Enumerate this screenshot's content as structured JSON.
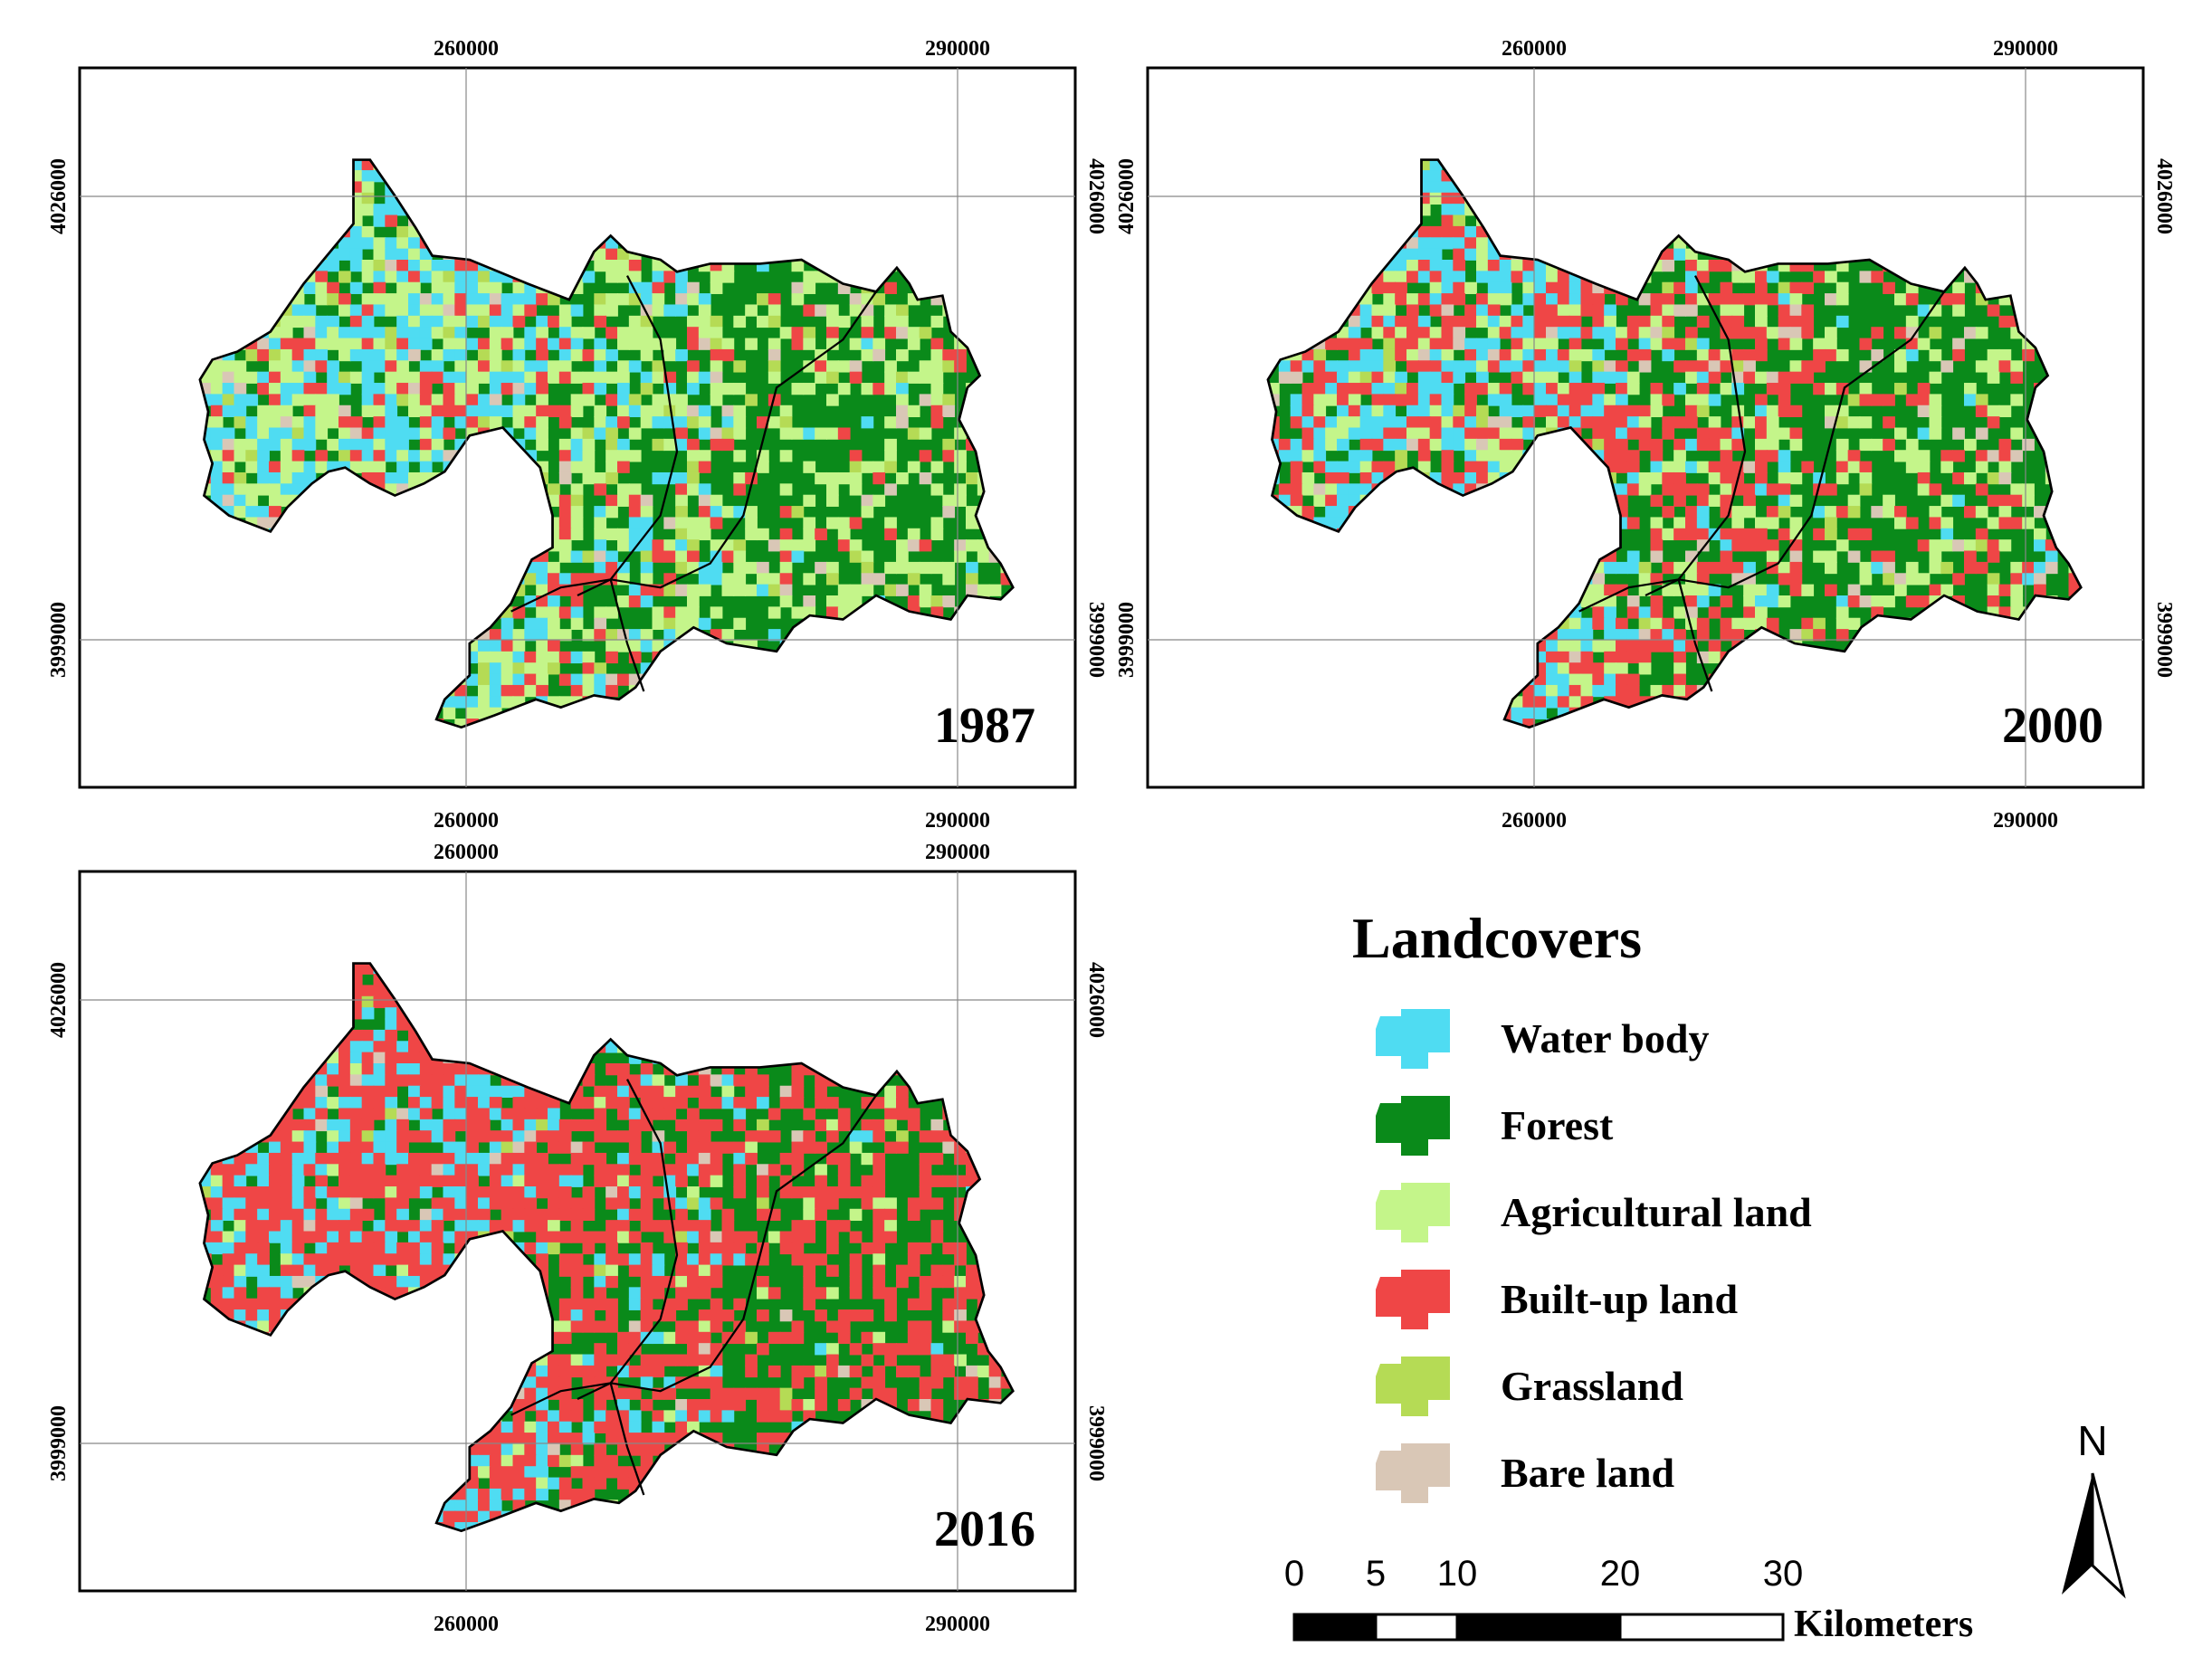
{
  "colors": {
    "water": "#4fdcf2",
    "forest": "#0a8a1a",
    "agri": "#c4f58a",
    "built": "#ef4646",
    "grass": "#b5db55",
    "bare": "#d9c7b6"
  },
  "grid": {
    "x_labels": [
      "260000",
      "290000"
    ],
    "y_labels": [
      "4026000",
      "3999000"
    ]
  },
  "panels": [
    {
      "year": "1987",
      "mix": {
        "water": 0.14,
        "forest": 0.36,
        "agri": 0.27,
        "built": 0.14,
        "grass": 0.05,
        "bare": 0.04
      }
    },
    {
      "year": "2000",
      "mix": {
        "water": 0.13,
        "forest": 0.34,
        "agri": 0.14,
        "built": 0.32,
        "grass": 0.03,
        "bare": 0.04
      }
    },
    {
      "year": "2016",
      "mix": {
        "water": 0.11,
        "forest": 0.28,
        "agri": 0.04,
        "built": 0.54,
        "grass": 0.01,
        "bare": 0.02
      }
    }
  ],
  "legend": {
    "title": "Landcovers",
    "items": [
      {
        "label": "Water body",
        "color_key": "water",
        "icon": "water-body-swatch-icon"
      },
      {
        "label": "Forest",
        "color_key": "forest",
        "icon": "forest-swatch-icon"
      },
      {
        "label": "Agricultural land",
        "color_key": "agri",
        "icon": "agricultural-land-swatch-icon"
      },
      {
        "label": "Built-up land",
        "color_key": "built",
        "icon": "built-up-land-swatch-icon"
      },
      {
        "label": "Grassland",
        "color_key": "grass",
        "icon": "grassland-swatch-icon"
      },
      {
        "label": "Bare land",
        "color_key": "bare",
        "icon": "bare-land-swatch-icon"
      }
    ]
  },
  "scale_bar": {
    "ticks": [
      "0",
      "5",
      "10",
      "20",
      "30"
    ],
    "unit": "Kilometers"
  },
  "north_arrow": {
    "label": "N",
    "icon": "north-arrow-icon"
  }
}
